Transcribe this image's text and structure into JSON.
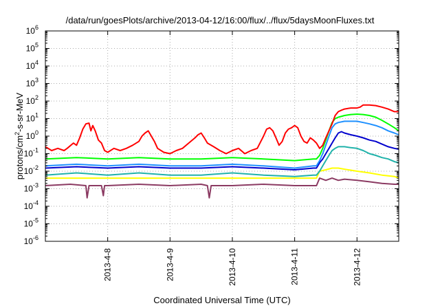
{
  "chart_data": {
    "type": "line",
    "title": "/data/run/goesPlots/archive/2013-04-12/16:00/flux/../flux/5daysMoonFluxes.txt",
    "xlabel": "Coordinated Universal Time (UTC)",
    "ylabel": {
      "base": "protons/cm",
      "sup": "2",
      "rest": "-s-sr-MeV"
    },
    "yscale": "log",
    "ylim": [
      1e-06,
      1000000.0
    ],
    "xlim": [
      0,
      5.67
    ],
    "x_unit": "days since 2013-04-07 00:00 UTC",
    "grid": true,
    "legend": "none",
    "x_ticks": [
      {
        "x": 1,
        "label": "2013-4-8"
      },
      {
        "x": 2,
        "label": "2013-4-9"
      },
      {
        "x": 3,
        "label": "2013-4-10"
      },
      {
        "x": 4,
        "label": "2013-4-11"
      },
      {
        "x": 5,
        "label": "2013-4-12"
      }
    ],
    "y_ticks": [
      {
        "exp": 6,
        "label": "10",
        "sup": "6"
      },
      {
        "exp": 5,
        "label": "10",
        "sup": "5"
      },
      {
        "exp": 4,
        "label": "10",
        "sup": "4"
      },
      {
        "exp": 3,
        "label": "10",
        "sup": "3"
      },
      {
        "exp": 2,
        "label": "10",
        "sup": "2"
      },
      {
        "exp": 1,
        "label": "10",
        "sup": "1"
      },
      {
        "exp": 0,
        "label": "10",
        "sup": "0"
      },
      {
        "exp": -1,
        "label": "10",
        "sup": "-1"
      },
      {
        "exp": -2,
        "label": "10",
        "sup": "-2"
      },
      {
        "exp": -3,
        "label": "10",
        "sup": "-3"
      },
      {
        "exp": -4,
        "label": "10",
        "sup": "-4"
      },
      {
        "exp": -5,
        "label": "10",
        "sup": "-5"
      },
      {
        "exp": -6,
        "label": "10",
        "sup": "-6"
      }
    ],
    "series": [
      {
        "color": "#ff0000",
        "points": [
          [
            0,
            0.25
          ],
          [
            0.1,
            0.15
          ],
          [
            0.2,
            0.2
          ],
          [
            0.3,
            0.15
          ],
          [
            0.35,
            0.2
          ],
          [
            0.45,
            0.4
          ],
          [
            0.5,
            0.3
          ],
          [
            0.55,
            0.8
          ],
          [
            0.6,
            2.5
          ],
          [
            0.65,
            5.0
          ],
          [
            0.7,
            5.5
          ],
          [
            0.73,
            2.0
          ],
          [
            0.76,
            4.0
          ],
          [
            0.8,
            2.0
          ],
          [
            0.85,
            0.6
          ],
          [
            0.9,
            0.4
          ],
          [
            0.95,
            0.15
          ],
          [
            1.0,
            0.12
          ],
          [
            1.1,
            0.2
          ],
          [
            1.2,
            0.15
          ],
          [
            1.3,
            0.2
          ],
          [
            1.4,
            0.3
          ],
          [
            1.5,
            0.5
          ],
          [
            1.55,
            1.0
          ],
          [
            1.6,
            1.5
          ],
          [
            1.65,
            2.0
          ],
          [
            1.7,
            1.0
          ],
          [
            1.75,
            0.5
          ],
          [
            1.8,
            0.2
          ],
          [
            1.9,
            0.12
          ],
          [
            2.0,
            0.1
          ],
          [
            2.1,
            0.15
          ],
          [
            2.2,
            0.2
          ],
          [
            2.3,
            0.4
          ],
          [
            2.4,
            0.8
          ],
          [
            2.45,
            1.2
          ],
          [
            2.5,
            1.5
          ],
          [
            2.55,
            0.8
          ],
          [
            2.6,
            0.4
          ],
          [
            2.7,
            0.25
          ],
          [
            2.8,
            0.15
          ],
          [
            2.9,
            0.1
          ],
          [
            3.0,
            0.15
          ],
          [
            3.1,
            0.2
          ],
          [
            3.2,
            0.1
          ],
          [
            3.3,
            0.15
          ],
          [
            3.4,
            0.2
          ],
          [
            3.5,
            1.0
          ],
          [
            3.55,
            2.5
          ],
          [
            3.6,
            3.0
          ],
          [
            3.65,
            2.0
          ],
          [
            3.7,
            0.8
          ],
          [
            3.75,
            0.3
          ],
          [
            3.8,
            0.5
          ],
          [
            3.85,
            1.5
          ],
          [
            3.9,
            2.5
          ],
          [
            3.95,
            3.0
          ],
          [
            4.0,
            4.0
          ],
          [
            4.05,
            3.0
          ],
          [
            4.1,
            1.0
          ],
          [
            4.15,
            0.5
          ],
          [
            4.2,
            0.4
          ],
          [
            4.25,
            0.8
          ],
          [
            4.3,
            0.6
          ],
          [
            4.35,
            0.4
          ],
          [
            4.4,
            0.2
          ],
          [
            4.45,
            0.3
          ],
          [
            4.5,
            0.8
          ],
          [
            4.55,
            2.0
          ],
          [
            4.6,
            5.0
          ],
          [
            4.65,
            15
          ],
          [
            4.7,
            25
          ],
          [
            4.75,
            30
          ],
          [
            4.8,
            35
          ],
          [
            4.9,
            40
          ],
          [
            5.0,
            40
          ],
          [
            5.05,
            45
          ],
          [
            5.1,
            60
          ],
          [
            5.2,
            60
          ],
          [
            5.3,
            55
          ],
          [
            5.4,
            45
          ],
          [
            5.5,
            35
          ],
          [
            5.6,
            25
          ],
          [
            5.67,
            25
          ]
        ]
      },
      {
        "color": "#00ff00",
        "points": [
          [
            0,
            0.05
          ],
          [
            0.5,
            0.06
          ],
          [
            1.0,
            0.05
          ],
          [
            1.5,
            0.06
          ],
          [
            2.0,
            0.05
          ],
          [
            2.5,
            0.05
          ],
          [
            3.0,
            0.06
          ],
          [
            3.5,
            0.05
          ],
          [
            4.0,
            0.04
          ],
          [
            4.3,
            0.05
          ],
          [
            4.35,
            0.05
          ],
          [
            4.4,
            0.08
          ],
          [
            4.45,
            0.2
          ],
          [
            4.5,
            0.6
          ],
          [
            4.55,
            2.0
          ],
          [
            4.6,
            6.0
          ],
          [
            4.65,
            10
          ],
          [
            4.7,
            12
          ],
          [
            4.8,
            15
          ],
          [
            4.9,
            17
          ],
          [
            5.0,
            18
          ],
          [
            5.1,
            17
          ],
          [
            5.2,
            15
          ],
          [
            5.3,
            12
          ],
          [
            5.4,
            8
          ],
          [
            5.5,
            5
          ],
          [
            5.6,
            3
          ],
          [
            5.67,
            2.0
          ]
        ]
      },
      {
        "color": "#1e90ff",
        "points": [
          [
            0,
            0.02
          ],
          [
            0.5,
            0.025
          ],
          [
            1.0,
            0.02
          ],
          [
            1.5,
            0.025
          ],
          [
            2.0,
            0.02
          ],
          [
            2.5,
            0.02
          ],
          [
            3.0,
            0.025
          ],
          [
            3.5,
            0.02
          ],
          [
            4.0,
            0.015
          ],
          [
            4.3,
            0.02
          ],
          [
            4.35,
            0.02
          ],
          [
            4.4,
            0.04
          ],
          [
            4.45,
            0.1
          ],
          [
            4.5,
            0.3
          ],
          [
            4.55,
            1.0
          ],
          [
            4.6,
            3.0
          ],
          [
            4.65,
            5
          ],
          [
            4.7,
            6
          ],
          [
            4.8,
            7
          ],
          [
            4.9,
            7
          ],
          [
            5.0,
            7
          ],
          [
            5.1,
            6
          ],
          [
            5.2,
            5
          ],
          [
            5.3,
            4
          ],
          [
            5.4,
            3
          ],
          [
            5.5,
            2
          ],
          [
            5.6,
            1.5
          ],
          [
            5.67,
            1.2
          ]
        ]
      },
      {
        "color": "#0000cd",
        "points": [
          [
            0,
            0.015
          ],
          [
            0.5,
            0.018
          ],
          [
            1.0,
            0.015
          ],
          [
            1.5,
            0.018
          ],
          [
            2.0,
            0.015
          ],
          [
            2.5,
            0.015
          ],
          [
            3.0,
            0.018
          ],
          [
            3.5,
            0.015
          ],
          [
            4.0,
            0.012
          ],
          [
            4.3,
            0.015
          ],
          [
            4.35,
            0.015
          ],
          [
            4.4,
            0.03
          ],
          [
            4.45,
            0.05
          ],
          [
            4.5,
            0.1
          ],
          [
            4.55,
            0.2
          ],
          [
            4.6,
            0.4
          ],
          [
            4.65,
            0.8
          ],
          [
            4.7,
            1.5
          ],
          [
            4.75,
            1.8
          ],
          [
            4.8,
            1.5
          ],
          [
            4.9,
            1.2
          ],
          [
            5.0,
            1.0
          ],
          [
            5.1,
            0.8
          ],
          [
            5.2,
            0.6
          ],
          [
            5.3,
            0.5
          ],
          [
            5.4,
            0.35
          ],
          [
            5.5,
            0.25
          ],
          [
            5.6,
            0.2
          ],
          [
            5.67,
            0.18
          ]
        ]
      },
      {
        "color": "#20b2aa",
        "points": [
          [
            0,
            0.006
          ],
          [
            0.5,
            0.008
          ],
          [
            1.0,
            0.006
          ],
          [
            1.5,
            0.008
          ],
          [
            2.0,
            0.006
          ],
          [
            2.5,
            0.006
          ],
          [
            3.0,
            0.008
          ],
          [
            3.5,
            0.006
          ],
          [
            4.0,
            0.005
          ],
          [
            4.3,
            0.006
          ],
          [
            4.35,
            0.006
          ],
          [
            4.4,
            0.01
          ],
          [
            4.45,
            0.02
          ],
          [
            4.5,
            0.04
          ],
          [
            4.55,
            0.08
          ],
          [
            4.6,
            0.15
          ],
          [
            4.65,
            0.2
          ],
          [
            4.7,
            0.25
          ],
          [
            4.8,
            0.25
          ],
          [
            4.9,
            0.22
          ],
          [
            5.0,
            0.2
          ],
          [
            5.1,
            0.15
          ],
          [
            5.2,
            0.1
          ],
          [
            5.3,
            0.08
          ],
          [
            5.4,
            0.06
          ],
          [
            5.5,
            0.05
          ],
          [
            5.6,
            0.035
          ],
          [
            5.67,
            0.03
          ]
        ]
      },
      {
        "color": "#ffff00",
        "points": [
          [
            0,
            0.004
          ],
          [
            1.0,
            0.004
          ],
          [
            2.0,
            0.004
          ],
          [
            3.0,
            0.004
          ],
          [
            4.0,
            0.004
          ],
          [
            4.35,
            0.004
          ],
          [
            4.4,
            0.01
          ],
          [
            4.5,
            0.012
          ],
          [
            4.6,
            0.015
          ],
          [
            4.7,
            0.015
          ],
          [
            4.8,
            0.013
          ],
          [
            5.0,
            0.01
          ],
          [
            5.2,
            0.008
          ],
          [
            5.4,
            0.006
          ],
          [
            5.6,
            0.005
          ],
          [
            5.67,
            0.004
          ]
        ]
      },
      {
        "color": "#8b3a62",
        "points": [
          [
            0,
            0.0015
          ],
          [
            0.4,
            0.0018
          ],
          [
            0.65,
            0.0015
          ],
          [
            0.67,
            0.0003
          ],
          [
            0.7,
            0.0015
          ],
          [
            0.9,
            0.0015
          ],
          [
            0.93,
            0.0004
          ],
          [
            0.95,
            0.0015
          ],
          [
            1.0,
            0.0015
          ],
          [
            1.5,
            0.0018
          ],
          [
            2.0,
            0.0015
          ],
          [
            2.5,
            0.0018
          ],
          [
            2.6,
            0.0015
          ],
          [
            2.63,
            0.0003
          ],
          [
            2.66,
            0.0015
          ],
          [
            3.0,
            0.0015
          ],
          [
            3.5,
            0.0018
          ],
          [
            4.0,
            0.0015
          ],
          [
            4.35,
            0.0015
          ],
          [
            4.4,
            0.004
          ],
          [
            4.5,
            0.003
          ],
          [
            4.6,
            0.004
          ],
          [
            4.7,
            0.003
          ],
          [
            4.8,
            0.0035
          ],
          [
            5.0,
            0.003
          ],
          [
            5.2,
            0.0025
          ],
          [
            5.4,
            0.002
          ],
          [
            5.6,
            0.0018
          ],
          [
            5.67,
            0.0018
          ]
        ]
      }
    ]
  }
}
